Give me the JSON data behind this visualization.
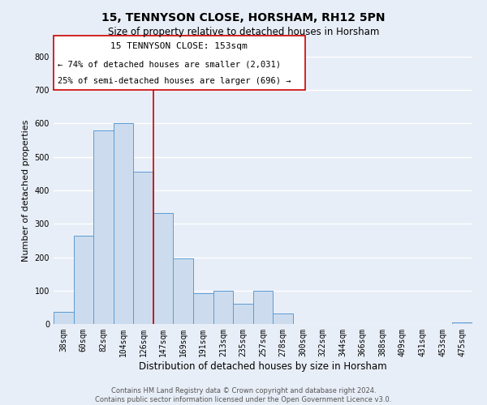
{
  "title": "15, TENNYSON CLOSE, HORSHAM, RH12 5PN",
  "subtitle": "Size of property relative to detached houses in Horsham",
  "xlabel": "Distribution of detached houses by size in Horsham",
  "ylabel": "Number of detached properties",
  "bar_labels": [
    "38sqm",
    "60sqm",
    "82sqm",
    "104sqm",
    "126sqm",
    "147sqm",
    "169sqm",
    "191sqm",
    "213sqm",
    "235sqm",
    "257sqm",
    "278sqm",
    "300sqm",
    "322sqm",
    "344sqm",
    "366sqm",
    "388sqm",
    "409sqm",
    "431sqm",
    "453sqm",
    "475sqm"
  ],
  "bar_values": [
    37,
    265,
    580,
    600,
    455,
    333,
    197,
    91,
    100,
    60,
    100,
    32,
    0,
    0,
    0,
    0,
    0,
    0,
    0,
    0,
    5
  ],
  "bar_color": "#ccdcee",
  "bar_edge_color": "#5b9bd5",
  "marker_line_index": 5,
  "marker_line_color": "#cc0000",
  "ylim": [
    0,
    800
  ],
  "yticks": [
    0,
    100,
    200,
    300,
    400,
    500,
    600,
    700,
    800
  ],
  "annotation_title": "15 TENNYSON CLOSE: 153sqm",
  "annotation_line1": "← 74% of detached houses are smaller (2,031)",
  "annotation_line2": "25% of semi-detached houses are larger (696) →",
  "annotation_box_color": "#ffffff",
  "annotation_box_edge": "#cc0000",
  "footer_line1": "Contains HM Land Registry data © Crown copyright and database right 2024.",
  "footer_line2": "Contains public sector information licensed under the Open Government Licence v3.0.",
  "background_color": "#e8eef7",
  "grid_color": "#ffffff",
  "title_fontsize": 10,
  "subtitle_fontsize": 8.5,
  "xlabel_fontsize": 8.5,
  "ylabel_fontsize": 8,
  "tick_fontsize": 7,
  "footer_fontsize": 6,
  "ann_title_fontsize": 8,
  "ann_text_fontsize": 7.5
}
